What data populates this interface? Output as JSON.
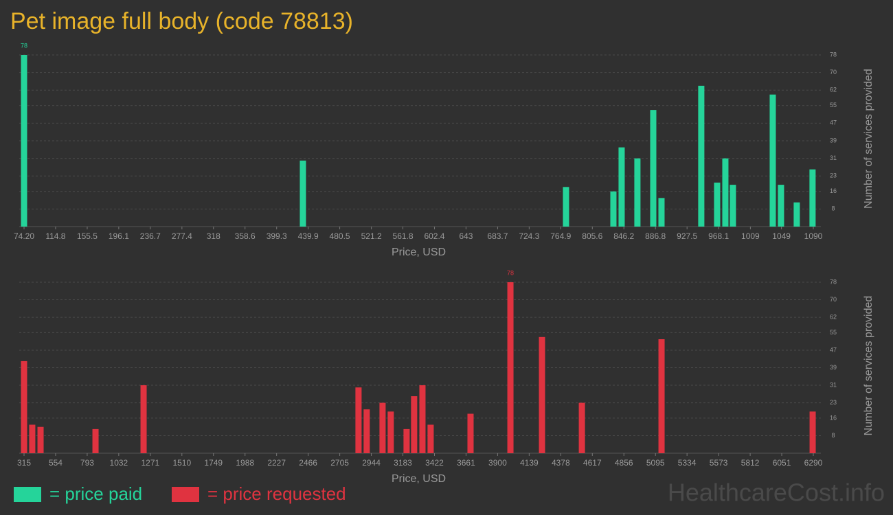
{
  "title": "Pet image full body (code 78813)",
  "watermark": "HealthcareCost.info",
  "chart_data": [
    {
      "type": "bar",
      "xlabel": "Price, USD",
      "ylabel": "Number of services provided",
      "x": [
        74.2,
        433.1,
        771.7,
        832.7,
        843.3,
        863.6,
        884,
        894.6,
        945.8,
        966.2,
        976.8,
        986.5,
        1037.8,
        1048.4,
        1068.7,
        1089
      ],
      "series": [
        {
          "name": "= price paid",
          "color": "#25d49a",
          "values": [
            78,
            30,
            18,
            16,
            36,
            31,
            53,
            13,
            64,
            20,
            31,
            19,
            60,
            19,
            11,
            26
          ]
        }
      ],
      "xlim": [
        74.2,
        1090
      ],
      "xticks": [
        {
          "value": 74.2,
          "label": "74.20"
        },
        114.8,
        155.5,
        196.1,
        236.7,
        277.4,
        318,
        358.6,
        399.3,
        439.9,
        480.5,
        521.2,
        561.8,
        602.4,
        643,
        683.7,
        724.3,
        764.9,
        805.6,
        846.2,
        886.8,
        927.5,
        968.1,
        1009,
        1049,
        1090
      ],
      "ylim": [
        0,
        78
      ],
      "yticks": [
        8,
        16,
        23,
        31,
        39,
        47,
        55,
        62,
        70,
        78
      ],
      "grid": true
    },
    {
      "type": "bar",
      "xlabel": "Price, USD",
      "ylabel": "Number of services provided",
      "x": [
        315,
        377,
        440,
        856,
        1220,
        2847,
        2909,
        3029,
        3091,
        3211,
        3268,
        3331,
        3393,
        3695,
        3997,
        4236,
        4538,
        5141,
        6285
      ],
      "series": [
        {
          "name": "= price requested",
          "color": "#e03340",
          "values": [
            42,
            13,
            12,
            11,
            31,
            30,
            20,
            23,
            19,
            11,
            26,
            31,
            13,
            18,
            78,
            53,
            23,
            52,
            19
          ]
        }
      ],
      "xlim": [
        315,
        6290
      ],
      "xticks": [
        315,
        554,
        793,
        1032,
        1271,
        1510,
        1749,
        1988,
        2227,
        2466,
        2705,
        2944,
        3183,
        3422,
        3661,
        3900,
        4139,
        4378,
        4617,
        4856,
        5095,
        5334,
        5573,
        5812,
        6051,
        6290
      ],
      "ylim": [
        0,
        78
      ],
      "yticks": [
        8,
        16,
        23,
        31,
        39,
        47,
        55,
        62,
        70,
        78
      ],
      "grid": true
    }
  ]
}
